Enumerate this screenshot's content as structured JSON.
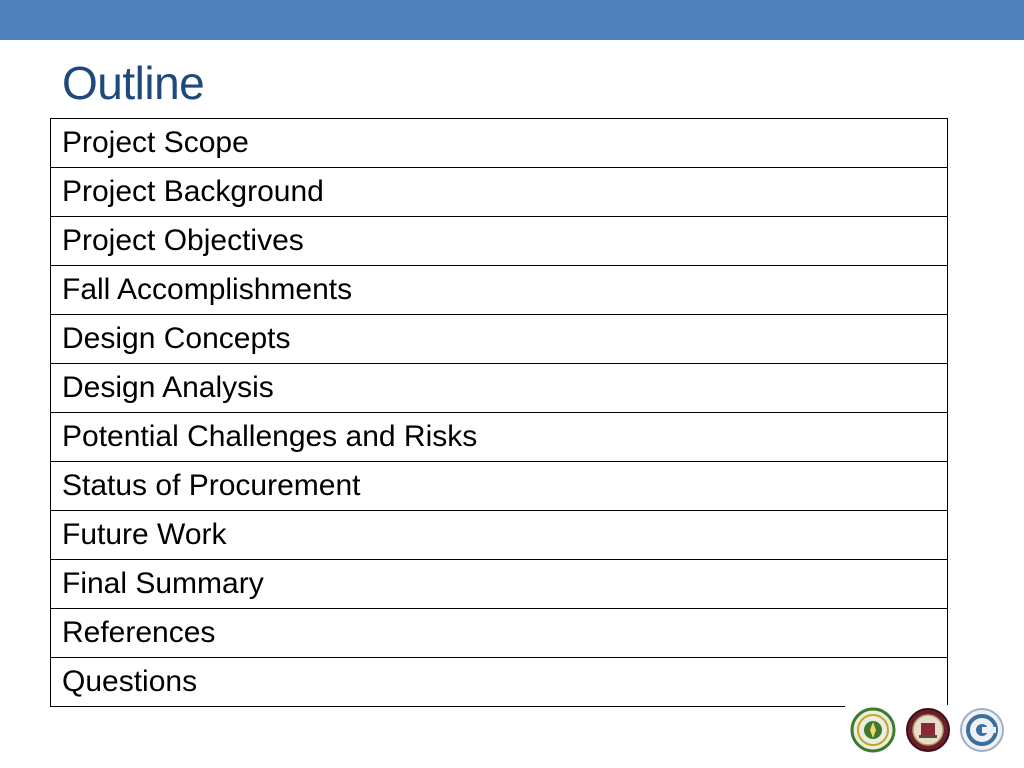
{
  "slide": {
    "title": "Outline",
    "accent_color": "#4f81bd",
    "title_color": "#1f497d"
  },
  "outline": {
    "items": [
      "Project Scope",
      "Project Background",
      "Project Objectives",
      "Fall Accomplishments",
      "Design Concepts",
      "Design Analysis",
      "Potential Challenges and Risks",
      "Status of Procurement",
      "Future Work",
      "Final Summary",
      "References",
      "Questions"
    ]
  },
  "logos": [
    "green-seal-logo-icon",
    "maroon-seal-logo-icon",
    "blue-circle-logo-icon"
  ]
}
